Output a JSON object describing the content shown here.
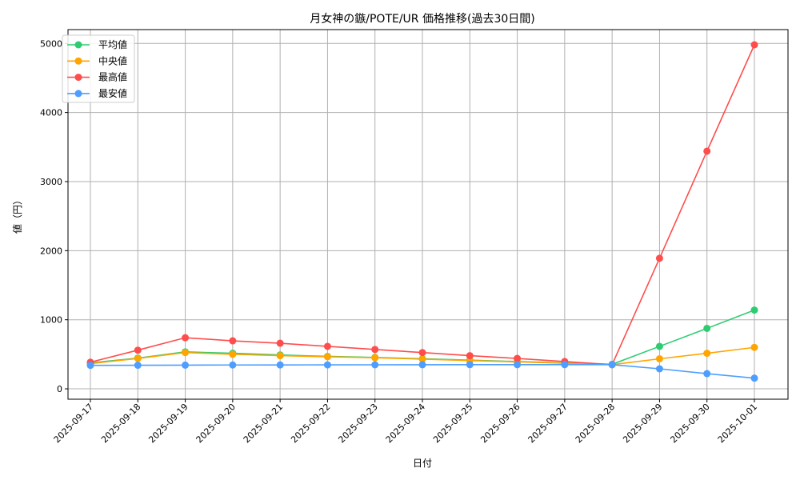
{
  "chart_data": {
    "type": "line",
    "title": "月女神の鏃/POTE/UR 価格推移(過去30日間)",
    "xlabel": "日付",
    "ylabel": "値（円）",
    "ylim": [
      -150,
      5200
    ],
    "yticks": [
      0,
      1000,
      2000,
      3000,
      4000,
      5000
    ],
    "grid": true,
    "legend_position": "top-left",
    "categories": [
      "2025-09-17",
      "2025-09-18",
      "2025-09-19",
      "2025-09-20",
      "2025-09-21",
      "2025-09-22",
      "2025-09-23",
      "2025-09-24",
      "2025-09-25",
      "2025-09-26",
      "2025-09-27",
      "2025-09-28",
      "2025-09-29",
      "2025-09-30",
      "2025-10-01"
    ],
    "series": [
      {
        "name": "平均値",
        "color": "#2ecc71",
        "values": [
          375,
          445,
          535,
          515,
          490,
          470,
          455,
          435,
          415,
          395,
          375,
          355,
          615,
          875,
          1140
        ]
      },
      {
        "name": "中央値",
        "color": "#ffa500",
        "values": [
          365,
          440,
          525,
          500,
          480,
          465,
          450,
          430,
          410,
          390,
          370,
          350,
          435,
          515,
          600
        ]
      },
      {
        "name": "最高値",
        "color": "#ff4d4d",
        "values": [
          385,
          560,
          740,
          695,
          660,
          615,
          570,
          525,
          480,
          440,
          395,
          350,
          1890,
          3440,
          4980
        ]
      },
      {
        "name": "最安値",
        "color": "#4d9eff",
        "values": [
          340,
          342,
          343,
          345,
          346,
          347,
          348,
          349,
          350,
          350,
          350,
          350,
          290,
          220,
          155
        ]
      }
    ]
  }
}
